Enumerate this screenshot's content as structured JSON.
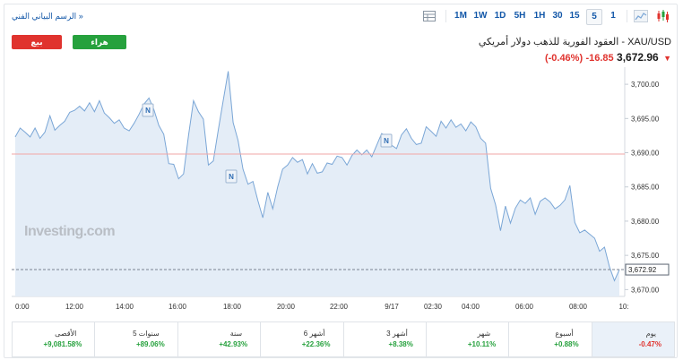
{
  "toolbar": {
    "tech_chart_link": "الرسم البياني الفني »",
    "timeframes": [
      "1M",
      "1W",
      "1D",
      "5H",
      "1H",
      "30",
      "15",
      "5",
      "1"
    ],
    "active_timeframe": "5"
  },
  "header": {
    "sell_label": "بيع",
    "buy_label": "هراء",
    "instrument_name": "XAU/USD - العقود الفورية للذهب دولار أمريكي",
    "price": "3,672.96",
    "change": "-16.85",
    "change_pct": "(-0.46%)"
  },
  "chart_data": {
    "type": "area",
    "watermark": "Investing.com",
    "x_ticks": [
      "0:00",
      "12:00",
      "14:00",
      "16:00",
      "18:00",
      "20:00",
      "22:00",
      "9/17",
      "02:30",
      "04:00",
      "06:00",
      "08:00",
      "10:"
    ],
    "y_ticks": [
      "3,700.00",
      "3,695.00",
      "3,690.00",
      "3,685.00",
      "3,680.00",
      "3,675.00",
      "3,670.00"
    ],
    "ylim": [
      3669.0,
      3702.5
    ],
    "reference_line": 3689.8,
    "last_price_label": "3,672.92",
    "last_price": 3672.92,
    "news_markers": [
      "N",
      "N",
      "N"
    ],
    "colors": {
      "line": "#7aa6d6",
      "fill": "#e4edf7",
      "ref_line": "#f2a6a6",
      "last_line": "#7a8391"
    },
    "values": [
      3692.3,
      3693.6,
      3693.0,
      3692.3,
      3693.6,
      3692.1,
      3693.0,
      3695.4,
      3693.3,
      3694.0,
      3694.6,
      3695.9,
      3696.2,
      3696.8,
      3696.1,
      3697.3,
      3696.0,
      3697.6,
      3695.8,
      3695.1,
      3694.3,
      3694.8,
      3693.6,
      3693.2,
      3694.3,
      3695.6,
      3697.1,
      3698.0,
      3696.3,
      3694.0,
      3692.7,
      3688.4,
      3688.3,
      3686.2,
      3686.9,
      3692.6,
      3697.6,
      3696.0,
      3694.9,
      3688.2,
      3688.8,
      3693.3,
      3697.6,
      3701.9,
      3694.4,
      3691.8,
      3687.6,
      3685.4,
      3685.8,
      3683.0,
      3680.5,
      3684.2,
      3681.8,
      3685.0,
      3687.6,
      3688.2,
      3689.3,
      3688.6,
      3689.0,
      3686.9,
      3688.4,
      3687.0,
      3687.2,
      3688.5,
      3688.3,
      3689.5,
      3689.3,
      3688.2,
      3689.6,
      3690.4,
      3689.7,
      3690.4,
      3689.4,
      3691.1,
      3692.8,
      3692.4,
      3691.1,
      3690.6,
      3692.6,
      3693.5,
      3692.1,
      3691.2,
      3691.4,
      3693.8,
      3693.1,
      3692.4,
      3694.6,
      3693.6,
      3694.8,
      3693.7,
      3694.2,
      3693.2,
      3694.5,
      3693.8,
      3692.1,
      3691.4,
      3684.8,
      3682.4,
      3678.6,
      3682.2,
      3679.7,
      3681.9,
      3683.1,
      3682.6,
      3683.4,
      3681.0,
      3682.9,
      3683.4,
      3682.8,
      3681.8,
      3682.3,
      3683.1,
      3685.2,
      3679.8,
      3678.3,
      3678.7,
      3678.1,
      3677.5,
      3675.6,
      3676.2,
      3673.3,
      3671.3,
      3672.9
    ]
  },
  "performance": [
    {
      "label": "الأقصى",
      "value": "+9,081.58%",
      "sign": "pos"
    },
    {
      "label": "5 سنوات",
      "value": "+89.06%",
      "sign": "pos"
    },
    {
      "label": "سنة",
      "value": "+42.93%",
      "sign": "pos"
    },
    {
      "label": "6 أشهر",
      "value": "+22.36%",
      "sign": "pos"
    },
    {
      "label": "3 أشهر",
      "value": "+8.38%",
      "sign": "pos"
    },
    {
      "label": "شهر",
      "value": "+10.11%",
      "sign": "pos"
    },
    {
      "label": "أسبوع",
      "value": "+0.88%",
      "sign": "pos"
    },
    {
      "label": "يوم",
      "value": "-0.47%",
      "sign": "neg"
    }
  ]
}
